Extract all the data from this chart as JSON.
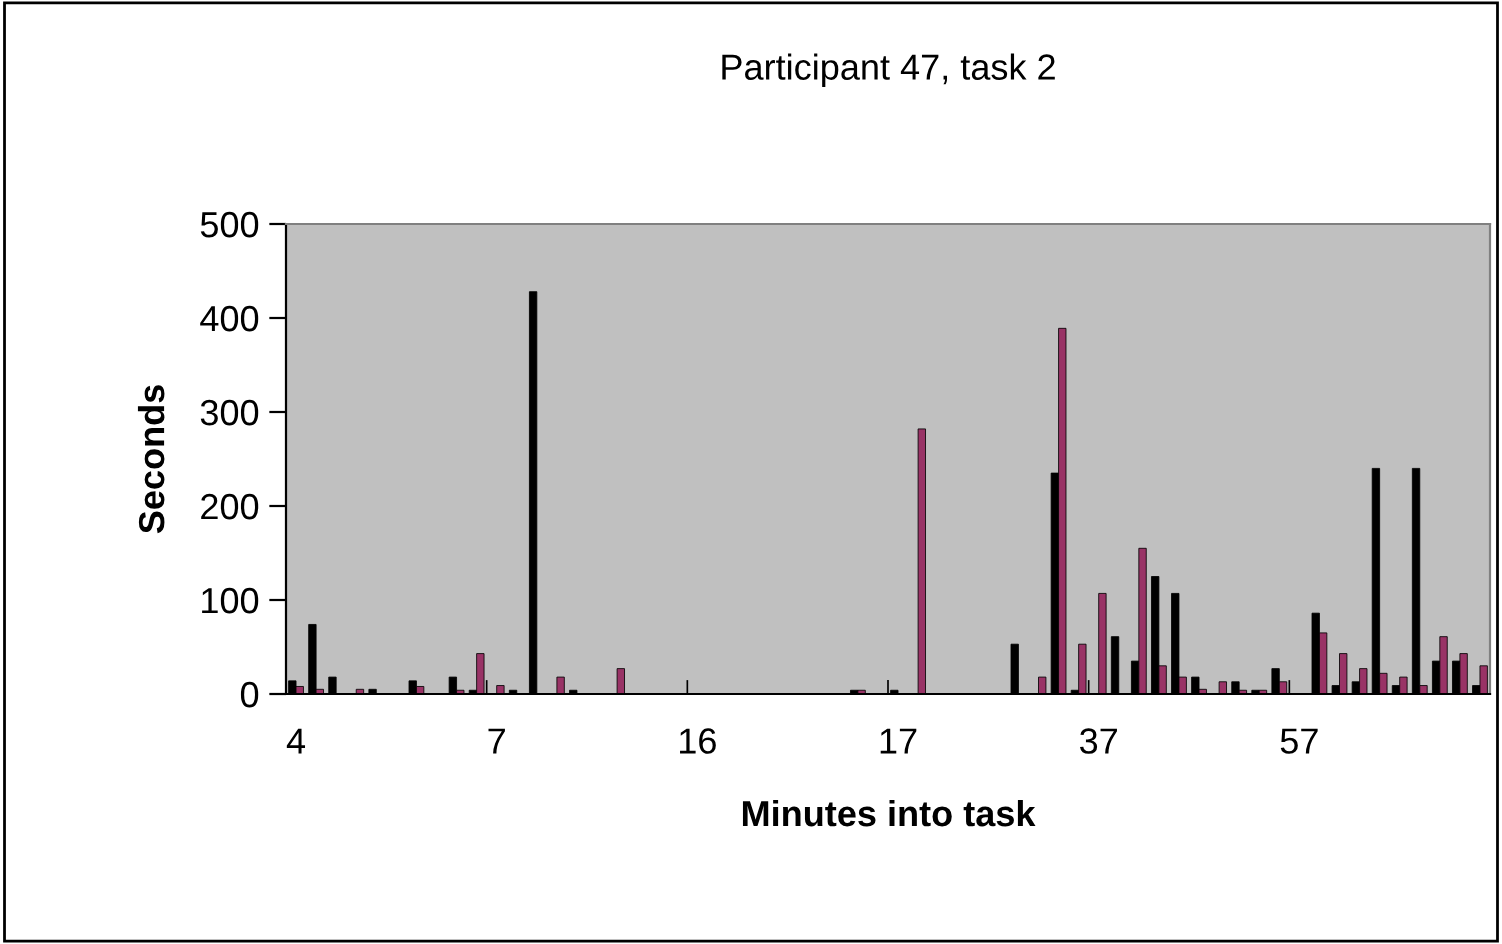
{
  "chart_data": {
    "type": "bar",
    "title": "Participant 47, task 2",
    "xlabel": "Minutes into task",
    "ylabel": "Seconds",
    "categories": [
      "4",
      null,
      null,
      null,
      null,
      null,
      null,
      null,
      null,
      null,
      "7",
      null,
      null,
      null,
      null,
      null,
      null,
      null,
      null,
      null,
      "16",
      null,
      null,
      null,
      null,
      null,
      null,
      null,
      null,
      null,
      "17",
      null,
      null,
      null,
      null,
      null,
      null,
      null,
      null,
      null,
      "37",
      null,
      null,
      null,
      null,
      null,
      null,
      null,
      null,
      null,
      "57",
      null,
      null,
      null,
      null,
      null,
      null,
      null,
      null,
      null
    ],
    "series": [
      {
        "color": "#000000",
        "values": [
          14,
          74,
          18,
          null,
          5,
          null,
          14,
          null,
          18,
          4,
          null,
          4,
          428,
          null,
          4,
          null,
          null,
          null,
          null,
          null,
          null,
          null,
          null,
          null,
          null,
          null,
          null,
          null,
          4,
          null,
          4,
          null,
          null,
          null,
          null,
          null,
          53,
          null,
          235,
          4,
          null,
          61,
          35,
          125,
          107,
          18,
          null,
          13,
          4,
          27,
          null,
          86,
          9,
          13,
          240,
          9,
          240,
          35,
          35,
          9
        ]
      },
      {
        "color": "#993366",
        "values": [
          8,
          5,
          null,
          5,
          null,
          null,
          8,
          null,
          4,
          43,
          9,
          null,
          null,
          18,
          null,
          null,
          27,
          null,
          null,
          null,
          null,
          null,
          null,
          null,
          null,
          null,
          null,
          null,
          4,
          null,
          null,
          282,
          null,
          null,
          null,
          null,
          null,
          18,
          389,
          53,
          107,
          null,
          155,
          30,
          18,
          5,
          13,
          4,
          4,
          13,
          null,
          65,
          43,
          27,
          22,
          18,
          9,
          61,
          43,
          30
        ]
      }
    ],
    "ylim": [
      0,
      500
    ],
    "yticks": [
      0,
      100,
      200,
      300,
      400,
      500
    ],
    "grid": false,
    "legend": false
  }
}
